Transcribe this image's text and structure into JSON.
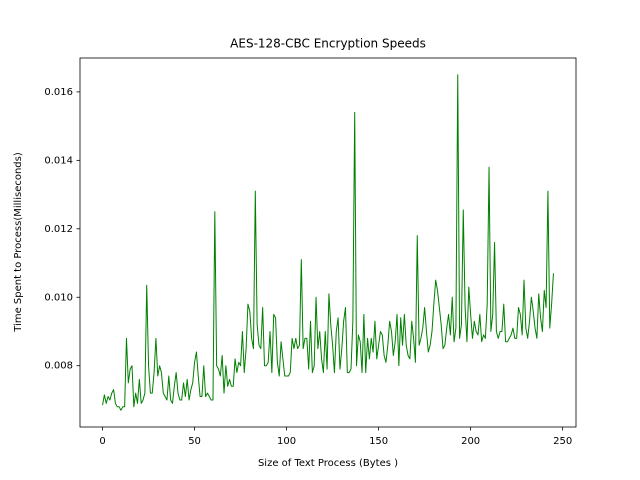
{
  "chart_data": {
    "type": "line",
    "title": "AES-128-CBC Encryption Speeds",
    "x_label": "Size of Text Process (Bytes )",
    "y_label": "Time Spent to Process(Milliseconds)",
    "x": [
      0,
      1,
      2,
      3,
      4,
      5,
      6,
      7,
      8,
      9,
      10,
      11,
      12,
      13,
      14,
      15,
      16,
      17,
      18,
      19,
      20,
      21,
      22,
      23,
      24,
      25,
      26,
      27,
      28,
      29,
      30,
      31,
      32,
      33,
      34,
      35,
      36,
      37,
      38,
      39,
      40,
      41,
      42,
      43,
      44,
      45,
      46,
      47,
      48,
      49,
      50,
      51,
      52,
      53,
      54,
      55,
      56,
      57,
      58,
      59,
      60,
      61,
      62,
      63,
      64,
      65,
      66,
      67,
      68,
      69,
      70,
      71,
      72,
      73,
      74,
      75,
      76,
      77,
      78,
      79,
      80,
      81,
      82,
      83,
      84,
      85,
      86,
      87,
      88,
      89,
      90,
      91,
      92,
      93,
      94,
      95,
      96,
      97,
      98,
      99,
      100,
      101,
      102,
      103,
      104,
      105,
      106,
      107,
      108,
      109,
      110,
      111,
      112,
      113,
      114,
      115,
      116,
      117,
      118,
      119,
      120,
      121,
      122,
      123,
      124,
      125,
      126,
      127,
      128,
      129,
      130,
      131,
      132,
      133,
      134,
      135,
      136,
      137,
      138,
      139,
      140,
      141,
      142,
      143,
      144,
      145,
      146,
      147,
      148,
      149,
      150,
      151,
      152,
      153,
      154,
      155,
      156,
      157,
      158,
      159,
      160,
      161,
      162,
      163,
      164,
      165,
      166,
      167,
      168,
      169,
      170,
      171,
      172,
      173,
      174,
      175,
      176,
      177,
      178,
      179,
      180,
      181,
      182,
      183,
      184,
      185,
      186,
      187,
      188,
      189,
      190,
      191,
      192,
      193,
      194,
      195,
      196,
      197,
      198,
      199,
      200,
      201,
      202,
      203,
      204,
      205,
      206,
      207,
      208,
      209,
      210,
      211,
      212,
      213,
      214,
      215,
      216,
      217,
      218,
      219,
      220,
      221,
      222,
      223,
      224,
      225,
      226,
      227,
      228,
      229,
      230,
      231,
      232,
      233,
      234,
      235,
      236,
      237,
      238,
      239,
      240,
      241,
      242,
      243,
      244,
      245
    ],
    "series": [
      {
        "name": "AES-128-CBC",
        "color": "#008000",
        "values": [
          0.00685,
          0.00715,
          0.0069,
          0.0071,
          0.007,
          0.0072,
          0.0073,
          0.0069,
          0.0068,
          0.0068,
          0.0067,
          0.0068,
          0.0068,
          0.0088,
          0.0075,
          0.0079,
          0.008,
          0.0068,
          0.0072,
          0.0069,
          0.0076,
          0.0069,
          0.007,
          0.0072,
          0.01035,
          0.008,
          0.0072,
          0.0072,
          0.0078,
          0.0088,
          0.0077,
          0.008,
          0.0078,
          0.0072,
          0.0071,
          0.007,
          0.0077,
          0.007,
          0.0069,
          0.0074,
          0.0078,
          0.0072,
          0.007,
          0.007,
          0.0075,
          0.0071,
          0.0076,
          0.007,
          0.0073,
          0.0075,
          0.0081,
          0.0084,
          0.0077,
          0.0071,
          0.0071,
          0.008,
          0.0071,
          0.0072,
          0.0071,
          0.007,
          0.007,
          0.0125,
          0.008,
          0.0079,
          0.0077,
          0.0083,
          0.0072,
          0.008,
          0.0074,
          0.0076,
          0.0074,
          0.0074,
          0.0082,
          0.0078,
          0.0081,
          0.008,
          0.009,
          0.0078,
          0.0085,
          0.0098,
          0.0096,
          0.0088,
          0.0085,
          0.0131,
          0.0092,
          0.0086,
          0.0085,
          0.0097,
          0.008,
          0.008,
          0.0081,
          0.009,
          0.0078,
          0.0095,
          0.0094,
          0.0081,
          0.0077,
          0.0087,
          0.0082,
          0.0077,
          0.0077,
          0.0077,
          0.0078,
          0.0088,
          0.0085,
          0.0088,
          0.0085,
          0.0086,
          0.0111,
          0.0085,
          0.0088,
          0.0088,
          0.0079,
          0.0093,
          0.0078,
          0.008,
          0.01,
          0.0085,
          0.009,
          0.0082,
          0.0078,
          0.009,
          0.0079,
          0.0101,
          0.0092,
          0.0086,
          0.0078,
          0.009,
          0.0094,
          0.0079,
          0.0085,
          0.0093,
          0.0097,
          0.0078,
          0.0078,
          0.0079,
          0.0093,
          0.0154,
          0.008,
          0.0089,
          0.0087,
          0.0078,
          0.0095,
          0.0078,
          0.0088,
          0.0082,
          0.0088,
          0.0084,
          0.0093,
          0.0082,
          0.0086,
          0.009,
          0.0089,
          0.0083,
          0.0081,
          0.0086,
          0.0093,
          0.009,
          0.0083,
          0.0087,
          0.0095,
          0.008,
          0.0094,
          0.0086,
          0.0095,
          0.0086,
          0.0083,
          0.0082,
          0.0093,
          0.0088,
          0.0081,
          0.0118,
          0.0086,
          0.0088,
          0.0091,
          0.0097,
          0.009,
          0.0084,
          0.0086,
          0.009,
          0.0098,
          0.0105,
          0.0102,
          0.0097,
          0.0092,
          0.0085,
          0.0086,
          0.0091,
          0.0095,
          0.0089,
          0.01,
          0.0087,
          0.0091,
          0.0165,
          0.0088,
          0.0092,
          0.01255,
          0.0097,
          0.0087,
          0.0103,
          0.0095,
          0.0088,
          0.0093,
          0.009,
          0.0089,
          0.0095,
          0.0087,
          0.0089,
          0.0088,
          0.0098,
          0.0138,
          0.009,
          0.0095,
          0.0116,
          0.009,
          0.0088,
          0.009,
          0.009,
          0.0098,
          0.0087,
          0.0087,
          0.0088,
          0.0089,
          0.0091,
          0.0088,
          0.0088,
          0.0097,
          0.0095,
          0.0089,
          0.0105,
          0.0091,
          0.0088,
          0.0093,
          0.01,
          0.0096,
          0.0091,
          0.0088,
          0.0101,
          0.0094,
          0.009,
          0.0102,
          0.0097,
          0.0131,
          0.0091,
          0.0098,
          0.0107
        ]
      }
    ],
    "xlim": [
      -12.25,
      257.25
    ],
    "ylim": [
      0.00621,
      0.01699
    ],
    "xticks": [
      0,
      50,
      100,
      150,
      200,
      250
    ],
    "yticks": [
      0.008,
      {
        "value": 0.01,
        "label": "0.010"
      },
      0.012,
      0.014,
      0.016
    ],
    "grid": false
  }
}
